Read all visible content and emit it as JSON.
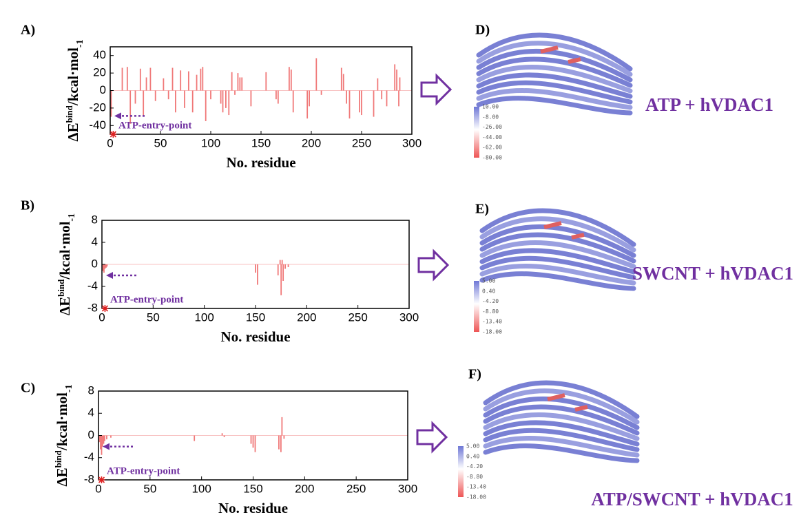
{
  "chart_data": [
    {
      "type": "bar",
      "panel_label": "A)",
      "x_label": "No. residue",
      "y_label": [
        "ΔE",
        "bind",
        "/kcal·mol",
        "-1"
      ],
      "annotation": "ATP-entry-point",
      "color": "#f07878",
      "x": [
        1,
        12,
        17,
        20,
        25,
        30,
        33,
        36,
        40,
        45,
        53,
        58,
        62,
        65,
        70,
        74,
        78,
        82,
        86,
        90,
        92,
        95,
        100,
        110,
        112,
        115,
        118,
        121,
        124,
        127,
        129,
        131,
        140,
        155,
        165,
        167,
        178,
        180,
        182,
        196,
        198,
        205,
        210,
        230,
        232,
        235,
        238,
        248,
        250,
        262,
        266,
        270,
        275,
        283,
        285,
        287,
        288
      ],
      "values": [
        -30,
        26,
        27,
        -38,
        -15,
        25,
        -30,
        15,
        26,
        -12,
        14,
        -10,
        26,
        -25,
        23,
        -20,
        22,
        -25,
        18,
        25,
        27,
        -35,
        -10,
        -15,
        -25,
        -20,
        -28,
        21,
        -5,
        20,
        15,
        15,
        -18,
        21,
        -10,
        -15,
        27,
        24,
        -25,
        -32,
        -18,
        37,
        -5,
        26,
        19,
        -15,
        -32,
        -25,
        -28,
        -30,
        14,
        -10,
        -18,
        30,
        24,
        -18,
        15
      ],
      "xlim": [
        0,
        300
      ],
      "xticks": [
        0,
        50,
        100,
        150,
        200,
        250,
        300
      ],
      "ylim": [
        -50,
        50
      ],
      "yticks": [
        -40,
        -20,
        0,
        20,
        40
      ]
    },
    {
      "type": "bar",
      "panel_label": "B)",
      "x_label": "No. residue",
      "y_label": [
        "ΔE",
        "bind",
        "/kcal·mol",
        "-1"
      ],
      "annotation": "ATP-entry-point",
      "color": "#f07878",
      "x": [
        1,
        2,
        3,
        4,
        5,
        150,
        152,
        172,
        174,
        175,
        176,
        177,
        179,
        182
      ],
      "values": [
        -1.2,
        -1.5,
        -0.8,
        -0.6,
        -0.4,
        -1.5,
        -3.7,
        -2,
        0.8,
        -5.6,
        0.8,
        -3,
        -0.8,
        -0.5
      ],
      "xlim": [
        0,
        300
      ],
      "xticks": [
        0,
        50,
        100,
        150,
        200,
        250,
        300
      ],
      "ylim": [
        -8,
        8
      ],
      "yticks": [
        -8,
        -4,
        0,
        4,
        8
      ]
    },
    {
      "type": "bar",
      "panel_label": "C)",
      "x_label": "No. residue",
      "y_label": [
        "ΔE",
        "bind",
        "/kcal·mol",
        "-1"
      ],
      "annotation": "ATP-entry-point",
      "color": "#f07878",
      "x": [
        1,
        2,
        3,
        4,
        5,
        6,
        8,
        12,
        93,
        120,
        122,
        148,
        150,
        152,
        175,
        177,
        178,
        180
      ],
      "values": [
        -1.2,
        -2.5,
        -3.5,
        -2,
        -1.5,
        -1,
        -0.7,
        -0.4,
        -1,
        0.4,
        -0.3,
        -1.5,
        -2.2,
        -3,
        -2.5,
        -3,
        3.3,
        -0.6
      ],
      "xlim": [
        0,
        300
      ],
      "xticks": [
        0,
        50,
        100,
        150,
        200,
        250,
        300
      ],
      "ylim": [
        -8,
        8
      ],
      "yticks": [
        -8,
        -4,
        0,
        4,
        8
      ]
    }
  ],
  "structures": [
    {
      "label": "D)",
      "caption": "ATP + hVDAC1",
      "colorbar_ticks": [
        "10.00",
        "-8.00",
        "-26.00",
        "-44.00",
        "-62.00",
        "-80.00"
      ]
    },
    {
      "label": "E)",
      "caption": "SWCNT + hVDAC1",
      "colorbar_ticks": [
        "5.00",
        "0.40",
        "-4.20",
        "-8.80",
        "-13.40",
        "-18.00"
      ]
    },
    {
      "label": "F)",
      "caption": "ATP/SWCNT + hVDAC1",
      "colorbar_ticks": [
        "5.00",
        "0.40",
        "-4.20",
        "-8.80",
        "-13.40",
        "-18.00"
      ]
    }
  ]
}
